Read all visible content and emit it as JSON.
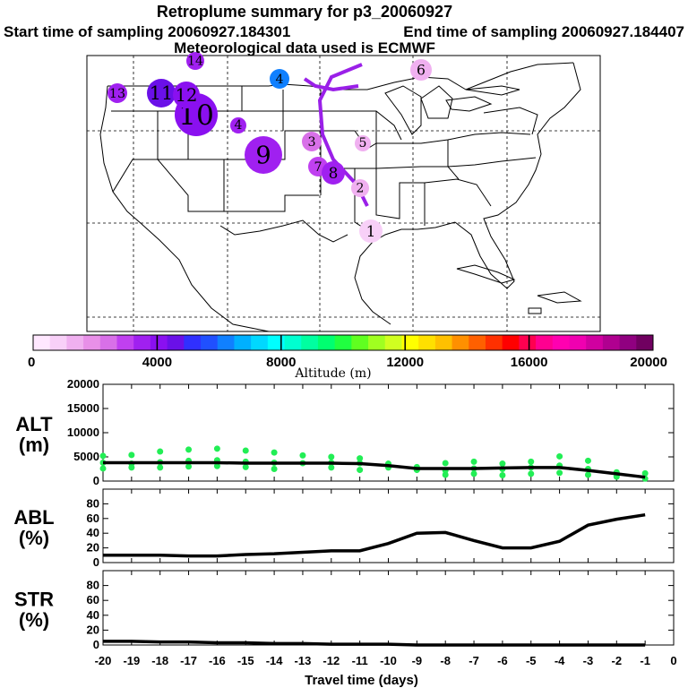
{
  "header": {
    "title": "Retroplume summary for p3_20060927",
    "start_label": "Start time of sampling 20060927.184301",
    "end_label": "End time of sampling 20060927.184407",
    "met_label": "Meteorological data used is ECMWF"
  },
  "colorbar": {
    "title": "Altitude (m)",
    "ticks": [
      "0",
      "4000",
      "8000",
      "12000",
      "16000",
      "20000"
    ],
    "colors": [
      "#ffe8ff",
      "#f8d0f8",
      "#f0b0f0",
      "#e890e8",
      "#d870e8",
      "#c040f0",
      "#a020f0",
      "#8a10f0",
      "#6a10e8",
      "#3030ff",
      "#2050ff",
      "#1080ff",
      "#00b0ff",
      "#00d8ff",
      "#00ffff",
      "#00ffd0",
      "#00ffa0",
      "#00ff70",
      "#20ff40",
      "#60ff20",
      "#a0ff20",
      "#d0ff20",
      "#ffff00",
      "#ffe000",
      "#ffc000",
      "#ff9000",
      "#ff6000",
      "#ff3000",
      "#ff0000",
      "#ff0050",
      "#ff0090",
      "#ff00b0",
      "#f000b0",
      "#d000a0",
      "#b00090",
      "#900080",
      "#700060"
    ]
  },
  "map": {
    "plume_points": [
      {
        "label": "1",
        "alt": 1000,
        "r": 13
      },
      {
        "label": "2",
        "alt": 1500,
        "r": 10
      },
      {
        "label": "3",
        "alt": 2500,
        "r": 11
      },
      {
        "label": "4",
        "alt": 3500,
        "r": 9
      },
      {
        "label": "5",
        "alt": 1500,
        "r": 9
      },
      {
        "label": "6",
        "alt": 1200,
        "r": 12
      },
      {
        "label": "7",
        "alt": 3200,
        "r": 11
      },
      {
        "label": "8",
        "alt": 3400,
        "r": 13
      },
      {
        "label": "9",
        "alt": 3600,
        "r": 21
      },
      {
        "label": "10",
        "alt": 4300,
        "r": 24
      },
      {
        "label": "11",
        "alt": 4400,
        "r": 16
      },
      {
        "label": "12",
        "alt": 3800,
        "r": 15
      },
      {
        "label": "13",
        "alt": 3500,
        "r": 11
      },
      {
        "label": "14",
        "alt": 3400,
        "r": 10
      },
      {
        "label": "4",
        "alt": 6200,
        "r": 11
      }
    ]
  },
  "chart_data": [
    {
      "type": "line",
      "panel": "ALT",
      "ylabel": "ALT (m)",
      "ylim": [
        0,
        20000
      ],
      "yticks": [
        0,
        5000,
        10000,
        15000,
        20000
      ],
      "x": [
        -20,
        -19,
        -18,
        -17,
        -16,
        -15,
        -14,
        -13,
        -12,
        -11,
        -10,
        -9,
        -8,
        -7,
        -6,
        -5,
        -4,
        -3,
        -2,
        -1
      ],
      "series": [
        {
          "name": "mean altitude",
          "values": [
            3800,
            3800,
            3800,
            3800,
            3800,
            3700,
            3700,
            3700,
            3700,
            3600,
            3200,
            2600,
            2600,
            2600,
            2700,
            2800,
            2800,
            2200,
            1500,
            800
          ]
        }
      ],
      "scatter": {
        "name": "plume altitudes",
        "color": "#22ee55",
        "points": [
          [
            -20,
            5200
          ],
          [
            -20,
            3800
          ],
          [
            -20,
            2600
          ],
          [
            -19,
            5400
          ],
          [
            -19,
            3600
          ],
          [
            -19,
            2800
          ],
          [
            -18,
            6100
          ],
          [
            -18,
            3900
          ],
          [
            -18,
            2800
          ],
          [
            -17,
            6500
          ],
          [
            -17,
            4200
          ],
          [
            -17,
            3000
          ],
          [
            -16,
            6700
          ],
          [
            -16,
            4300
          ],
          [
            -16,
            3100
          ],
          [
            -15,
            6300
          ],
          [
            -15,
            4000
          ],
          [
            -15,
            2900
          ],
          [
            -14,
            5900
          ],
          [
            -14,
            3800
          ],
          [
            -14,
            2500
          ],
          [
            -13,
            5300
          ],
          [
            -13,
            3700
          ],
          [
            -12,
            5000
          ],
          [
            -12,
            3800
          ],
          [
            -12,
            2800
          ],
          [
            -11,
            4700
          ],
          [
            -11,
            3700
          ],
          [
            -11,
            2300
          ],
          [
            -10,
            3600
          ],
          [
            -10,
            2800
          ],
          [
            -9,
            2900
          ],
          [
            -9,
            2300
          ],
          [
            -8,
            3700
          ],
          [
            -8,
            2200
          ],
          [
            -8,
            1300
          ],
          [
            -7,
            4000
          ],
          [
            -7,
            2600
          ],
          [
            -7,
            1500
          ],
          [
            -6,
            3600
          ],
          [
            -6,
            2500
          ],
          [
            -6,
            1200
          ],
          [
            -5,
            4000
          ],
          [
            -5,
            2800
          ],
          [
            -5,
            1500
          ],
          [
            -4,
            5100
          ],
          [
            -4,
            3200
          ],
          [
            -4,
            1700
          ],
          [
            -3,
            4200
          ],
          [
            -3,
            2500
          ],
          [
            -3,
            1300
          ],
          [
            -2,
            1800
          ],
          [
            -2,
            900
          ],
          [
            -1,
            1600
          ],
          [
            -1,
            500
          ]
        ]
      }
    },
    {
      "type": "line",
      "panel": "ABL",
      "ylabel": "ABL (%)",
      "ylim": [
        0,
        100
      ],
      "yticks": [
        0,
        20,
        40,
        60,
        80
      ],
      "x": [
        -20,
        -19,
        -18,
        -17,
        -16,
        -15,
        -14,
        -13,
        -12,
        -11,
        -10,
        -9,
        -8,
        -7,
        -6,
        -5,
        -4,
        -3,
        -2,
        -1
      ],
      "series": [
        {
          "name": "ABL fraction",
          "values": [
            10,
            10,
            10,
            9,
            9,
            11,
            12,
            14,
            16,
            16,
            26,
            40,
            41,
            30,
            20,
            20,
            29,
            51,
            59,
            65
          ]
        }
      ]
    },
    {
      "type": "line",
      "panel": "STR",
      "ylabel": "STR (%)",
      "ylim": [
        0,
        100
      ],
      "yticks": [
        0,
        20,
        40,
        60,
        80
      ],
      "xlabel": "Travel time (days)",
      "xticks": [
        "-20",
        "-19",
        "-18",
        "-17",
        "-16",
        "-15",
        "-14",
        "-13",
        "-12",
        "-11",
        "-10",
        "-9",
        "-8",
        "-7",
        "-6",
        "-5",
        "-4",
        "-3",
        "-2",
        "-1",
        "0"
      ],
      "x": [
        -20,
        -19,
        -18,
        -17,
        -16,
        -15,
        -14,
        -13,
        -12,
        -11,
        -10,
        -9,
        -8,
        -7,
        -6,
        -5,
        -4,
        -3,
        -2,
        -1
      ],
      "series": [
        {
          "name": "stratospheric fraction",
          "values": [
            5,
            5,
            4,
            4,
            3,
            3,
            2,
            2,
            1,
            1,
            1,
            0,
            0,
            0,
            0,
            0,
            0,
            0,
            0,
            0
          ]
        }
      ]
    }
  ]
}
